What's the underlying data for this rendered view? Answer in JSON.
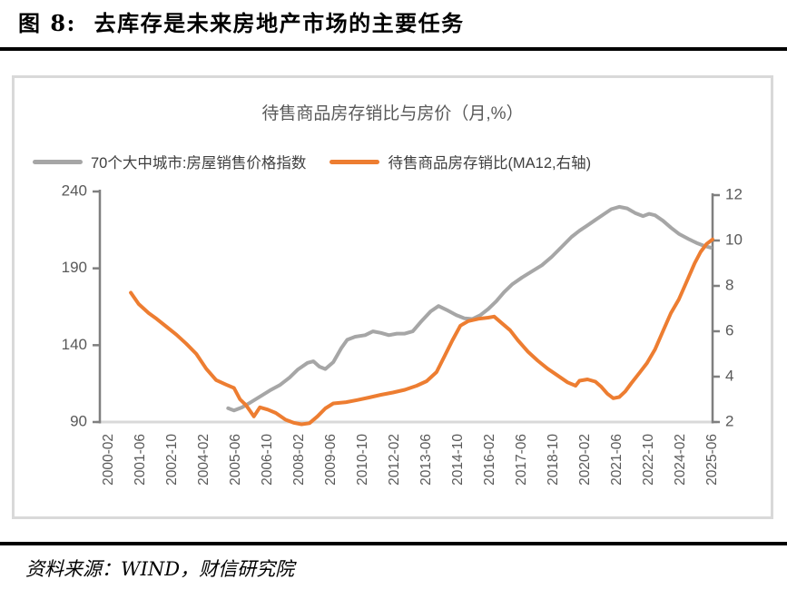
{
  "page": {
    "title": "图 8:  去库存是未来房地产市场的主要任务",
    "source": "资料来源：WIND，财信研究院"
  },
  "colors": {
    "heading_text": "#000000",
    "chart_border": "#D9D9D9",
    "axis_line": "#7F7F7F",
    "baseline": "#D9D9D9",
    "tick_text": "#595959",
    "chart_title_text": "#595959",
    "legend_text": "#3F3F3F",
    "series_gray": "#A6A6A6",
    "series_orange": "#ED7D31"
  },
  "chart_data": {
    "type": "line",
    "title": "待售商品房存销比与房价（月,%）",
    "grid": false,
    "legend_position": "top-left",
    "x_axis": {
      "unit": "year-month",
      "start": "2000-02",
      "end": "2025-06",
      "tick_interval_months": 16,
      "tick_labels": [
        "2000-02",
        "2001-06",
        "2002-10",
        "2004-02",
        "2005-06",
        "2006-10",
        "2008-02",
        "2009-06",
        "2010-10",
        "2012-02",
        "2013-06",
        "2014-10",
        "2016-02",
        "2017-06",
        "2018-10",
        "2020-02",
        "2021-06",
        "2022-10",
        "2024-02",
        "2025-06"
      ]
    },
    "left_axis": {
      "min": 90,
      "max": 240,
      "ticks": [
        90,
        140,
        190,
        240
      ]
    },
    "right_axis": {
      "min": 2,
      "max": 12,
      "ticks": [
        2,
        4,
        6,
        8,
        10,
        12
      ]
    },
    "series": [
      {
        "name": "70个大中城市:房屋销售价格指数",
        "axis": "left",
        "color": "#A6A6A6",
        "points": [
          [
            "2005-02",
            99
          ],
          [
            "2005-05",
            97.5
          ],
          [
            "2005-09",
            99.5
          ],
          [
            "2006-01",
            102.5
          ],
          [
            "2006-06",
            106.5
          ],
          [
            "2006-11",
            110.5
          ],
          [
            "2007-04",
            114
          ],
          [
            "2007-09",
            119
          ],
          [
            "2008-01",
            124
          ],
          [
            "2008-06",
            128.5
          ],
          [
            "2008-09",
            129.5
          ],
          [
            "2008-12",
            126
          ],
          [
            "2009-03",
            124.5
          ],
          [
            "2009-07",
            129
          ],
          [
            "2009-11",
            138
          ],
          [
            "2010-02",
            143.5
          ],
          [
            "2010-06",
            145.5
          ],
          [
            "2010-11",
            146.5
          ],
          [
            "2011-03",
            149
          ],
          [
            "2011-07",
            148
          ],
          [
            "2011-11",
            146.5
          ],
          [
            "2012-03",
            147.5
          ],
          [
            "2012-07",
            147.5
          ],
          [
            "2012-11",
            149
          ],
          [
            "2013-03",
            155
          ],
          [
            "2013-08",
            162
          ],
          [
            "2013-12",
            165.5
          ],
          [
            "2014-04",
            163
          ],
          [
            "2014-09",
            159.5
          ],
          [
            "2015-01",
            157.5
          ],
          [
            "2015-05",
            157
          ],
          [
            "2015-09",
            159.5
          ],
          [
            "2016-01",
            163.5
          ],
          [
            "2016-05",
            168.5
          ],
          [
            "2016-09",
            174.5
          ],
          [
            "2017-01",
            179.5
          ],
          [
            "2017-06",
            184
          ],
          [
            "2017-11",
            188
          ],
          [
            "2018-04",
            192
          ],
          [
            "2018-09",
            197.5
          ],
          [
            "2019-02",
            204
          ],
          [
            "2019-07",
            210.5
          ],
          [
            "2019-11",
            214.5
          ],
          [
            "2020-03",
            218
          ],
          [
            "2020-07",
            221.5
          ],
          [
            "2020-11",
            225
          ],
          [
            "2021-03",
            228.5
          ],
          [
            "2021-07",
            230
          ],
          [
            "2021-11",
            229
          ],
          [
            "2022-03",
            226
          ],
          [
            "2022-07",
            224
          ],
          [
            "2022-10",
            225.5
          ],
          [
            "2023-01",
            224.5
          ],
          [
            "2023-05",
            221
          ],
          [
            "2023-09",
            216.5
          ],
          [
            "2024-01",
            212.5
          ],
          [
            "2024-06",
            209
          ],
          [
            "2024-10",
            206.5
          ],
          [
            "2025-02",
            204.5
          ],
          [
            "2025-05",
            203.5
          ]
        ]
      },
      {
        "name": "待售商品房存销比(MA12,右轴)",
        "axis": "right",
        "color": "#ED7D31",
        "points": [
          [
            "2001-01",
            7.7
          ],
          [
            "2001-05",
            7.2
          ],
          [
            "2001-10",
            6.8
          ],
          [
            "2002-02",
            6.55
          ],
          [
            "2002-07",
            6.2
          ],
          [
            "2002-12",
            5.85
          ],
          [
            "2003-05",
            5.45
          ],
          [
            "2003-10",
            5.0
          ],
          [
            "2004-03",
            4.35
          ],
          [
            "2004-08",
            3.85
          ],
          [
            "2005-01",
            3.65
          ],
          [
            "2005-05",
            3.5
          ],
          [
            "2005-08",
            3.0
          ],
          [
            "2005-11",
            2.75
          ],
          [
            "2006-01",
            2.5
          ],
          [
            "2006-03",
            2.25
          ],
          [
            "2006-06",
            2.65
          ],
          [
            "2006-10",
            2.55
          ],
          [
            "2007-02",
            2.4
          ],
          [
            "2007-07",
            2.1
          ],
          [
            "2007-11",
            1.97
          ],
          [
            "2008-03",
            1.9
          ],
          [
            "2008-07",
            1.95
          ],
          [
            "2008-11",
            2.25
          ],
          [
            "2009-03",
            2.6
          ],
          [
            "2009-07",
            2.82
          ],
          [
            "2010-01",
            2.87
          ],
          [
            "2010-07",
            2.97
          ],
          [
            "2011-01",
            3.08
          ],
          [
            "2011-07",
            3.2
          ],
          [
            "2012-01",
            3.3
          ],
          [
            "2012-07",
            3.42
          ],
          [
            "2013-01",
            3.6
          ],
          [
            "2013-06",
            3.8
          ],
          [
            "2013-11",
            4.2
          ],
          [
            "2014-03",
            4.9
          ],
          [
            "2014-07",
            5.6
          ],
          [
            "2014-11",
            6.25
          ],
          [
            "2015-03",
            6.45
          ],
          [
            "2015-08",
            6.55
          ],
          [
            "2016-01",
            6.6
          ],
          [
            "2016-04",
            6.65
          ],
          [
            "2016-08",
            6.35
          ],
          [
            "2016-12",
            6.05
          ],
          [
            "2017-04",
            5.6
          ],
          [
            "2017-09",
            5.1
          ],
          [
            "2018-02",
            4.7
          ],
          [
            "2018-07",
            4.35
          ],
          [
            "2018-12",
            4.05
          ],
          [
            "2019-05",
            3.75
          ],
          [
            "2019-09",
            3.6
          ],
          [
            "2019-11",
            3.82
          ],
          [
            "2020-03",
            3.88
          ],
          [
            "2020-07",
            3.78
          ],
          [
            "2020-10",
            3.55
          ],
          [
            "2021-01",
            3.25
          ],
          [
            "2021-04",
            3.05
          ],
          [
            "2021-07",
            3.1
          ],
          [
            "2021-10",
            3.35
          ],
          [
            "2022-01",
            3.7
          ],
          [
            "2022-05",
            4.15
          ],
          [
            "2022-09",
            4.6
          ],
          [
            "2023-01",
            5.2
          ],
          [
            "2023-05",
            6.0
          ],
          [
            "2023-09",
            6.8
          ],
          [
            "2024-01",
            7.4
          ],
          [
            "2024-05",
            8.2
          ],
          [
            "2024-09",
            9.0
          ],
          [
            "2024-12",
            9.5
          ],
          [
            "2025-03",
            9.85
          ],
          [
            "2025-06",
            10.05
          ]
        ]
      }
    ]
  }
}
